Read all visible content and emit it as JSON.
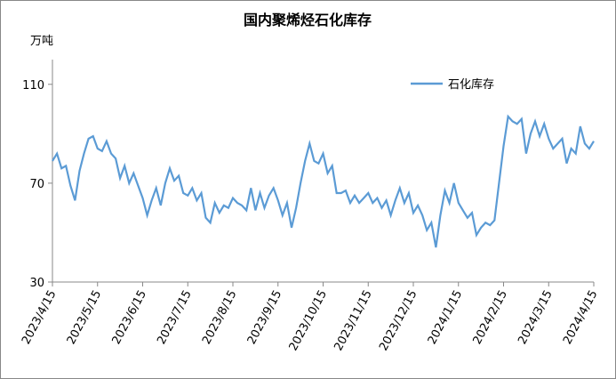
{
  "chart_data": {
    "type": "line",
    "title": "国内聚烯烃石化库存",
    "y_label": "万吨",
    "categories": [
      "2023/4/15",
      null,
      null,
      null,
      null,
      null,
      null,
      null,
      null,
      null,
      "2023/5/15",
      null,
      null,
      null,
      null,
      null,
      null,
      null,
      null,
      null,
      "2023/6/15",
      null,
      null,
      null,
      null,
      null,
      null,
      null,
      null,
      null,
      "2023/7/15",
      null,
      null,
      null,
      null,
      null,
      null,
      null,
      null,
      null,
      "2023/8/15",
      null,
      null,
      null,
      null,
      null,
      null,
      null,
      null,
      null,
      "2023/9/15",
      null,
      null,
      null,
      null,
      null,
      null,
      null,
      null,
      null,
      "2023/10/15",
      null,
      null,
      null,
      null,
      null,
      null,
      null,
      null,
      null,
      "2023/11/15",
      null,
      null,
      null,
      null,
      null,
      null,
      null,
      null,
      null,
      "2023/12/15",
      null,
      null,
      null,
      null,
      null,
      null,
      null,
      null,
      null,
      "2024/1/15",
      null,
      null,
      null,
      null,
      null,
      null,
      null,
      null,
      null,
      "2024/2/15",
      null,
      null,
      null,
      null,
      null,
      null,
      null,
      null,
      null,
      "2024/3/15",
      null,
      null,
      null,
      null,
      null,
      null,
      null,
      null,
      null,
      "2024/4/15"
    ],
    "series": [
      {
        "name": "石化库存",
        "color": "#5b9bd5",
        "values": [
          79,
          82,
          76,
          77,
          69,
          63,
          75,
          82,
          88,
          89,
          84,
          83,
          87,
          82,
          80,
          72,
          77,
          70,
          74,
          69,
          64,
          57,
          63,
          68,
          61,
          70,
          76,
          71,
          73,
          66,
          65,
          68,
          63,
          66,
          56,
          54,
          62,
          58,
          61,
          60,
          64,
          62,
          61,
          59,
          68,
          59,
          66,
          60,
          65,
          68,
          63,
          57,
          62,
          52,
          60,
          70,
          79,
          86,
          79,
          78,
          82,
          74,
          77,
          66,
          66,
          67,
          62,
          65,
          62,
          64,
          66,
          62,
          64,
          60,
          63,
          57,
          63,
          68,
          62,
          66,
          58,
          61,
          57,
          51,
          54,
          44,
          57,
          67,
          62,
          70,
          62,
          59,
          56,
          58,
          49,
          52,
          54,
          53,
          55,
          70,
          85,
          97,
          95,
          94,
          96,
          82,
          90,
          95,
          89,
          94,
          88,
          84,
          86,
          88,
          78,
          84,
          82,
          93,
          86,
          84,
          87
        ]
      }
    ],
    "ylim": [
      30,
      120
    ],
    "yticks": [
      30,
      70,
      110
    ],
    "grid": false,
    "legend": "upper right"
  }
}
